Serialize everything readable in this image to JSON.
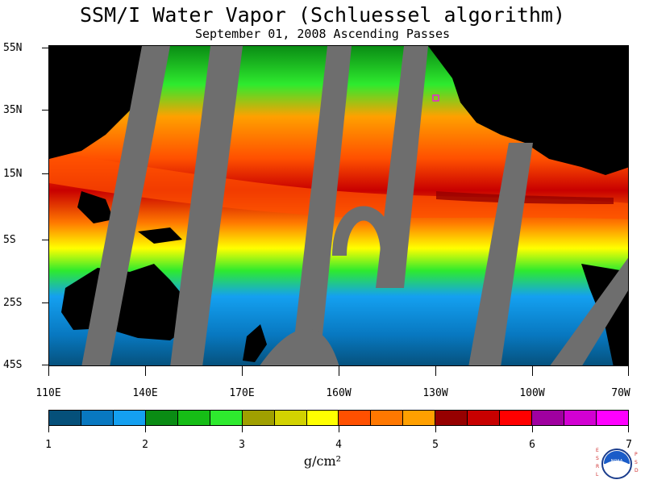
{
  "header": {
    "title": "SSM/I Water Vapor (Schluessel algorithm)",
    "subtitle": "September 01, 2008  Ascending Passes"
  },
  "map": {
    "lat_labels": [
      "55N",
      "35N",
      "15N",
      "5S",
      "25S",
      "45S"
    ],
    "lon_labels": [
      "110E",
      "140E",
      "170E",
      "160W",
      "130W",
      "100W",
      "70W"
    ]
  },
  "colorbar": {
    "ticks": [
      "1",
      "2",
      "3",
      "4",
      "5",
      "6",
      "7"
    ],
    "units": "g/cm²",
    "colors": [
      "#05507a",
      "#0878c0",
      "#14a0f0",
      "#0a8c14",
      "#16bd16",
      "#2eea2e",
      "#a0a000",
      "#d2d200",
      "#ffff00",
      "#ff5000",
      "#ff7800",
      "#ffa000",
      "#960000",
      "#c80000",
      "#ff0000",
      "#a000a0",
      "#d200d2",
      "#ff00ff"
    ]
  },
  "logo": {
    "left_text": "ESRL",
    "right_text": "PSD",
    "center_text": "NOAA"
  }
}
